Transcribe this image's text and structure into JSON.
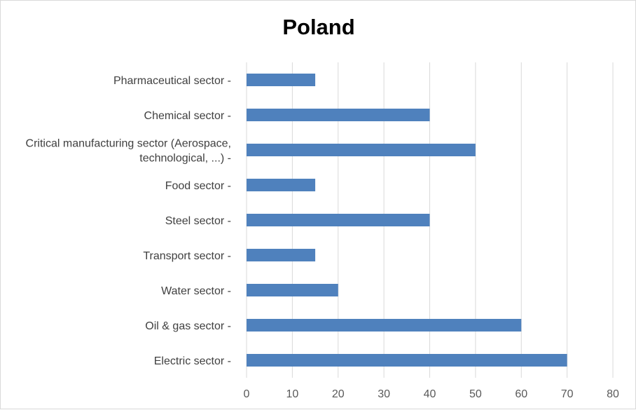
{
  "chart_data": {
    "type": "bar",
    "orientation": "horizontal",
    "title": "Poland",
    "categories": [
      "Pharmaceutical sector -",
      "Chemical sector -",
      [
        "Critical manufacturing sector (Aerospace,",
        "technological, ...) -"
      ],
      "Food sector -",
      "Steel sector -",
      "Transport sector -",
      "Water sector -",
      "Oil & gas sector -",
      "Electric sector -"
    ],
    "values": [
      15,
      40,
      50,
      15,
      40,
      15,
      20,
      60,
      70
    ],
    "xlim": [
      0,
      80
    ],
    "xticks": [
      "0",
      "10",
      "20",
      "30",
      "40",
      "50",
      "60",
      "70",
      "80"
    ],
    "xlabel": "",
    "ylabel": "",
    "grid": true,
    "legend": "none",
    "bar_color": "#4f81bd",
    "grid_color": "#d9d9d9"
  }
}
